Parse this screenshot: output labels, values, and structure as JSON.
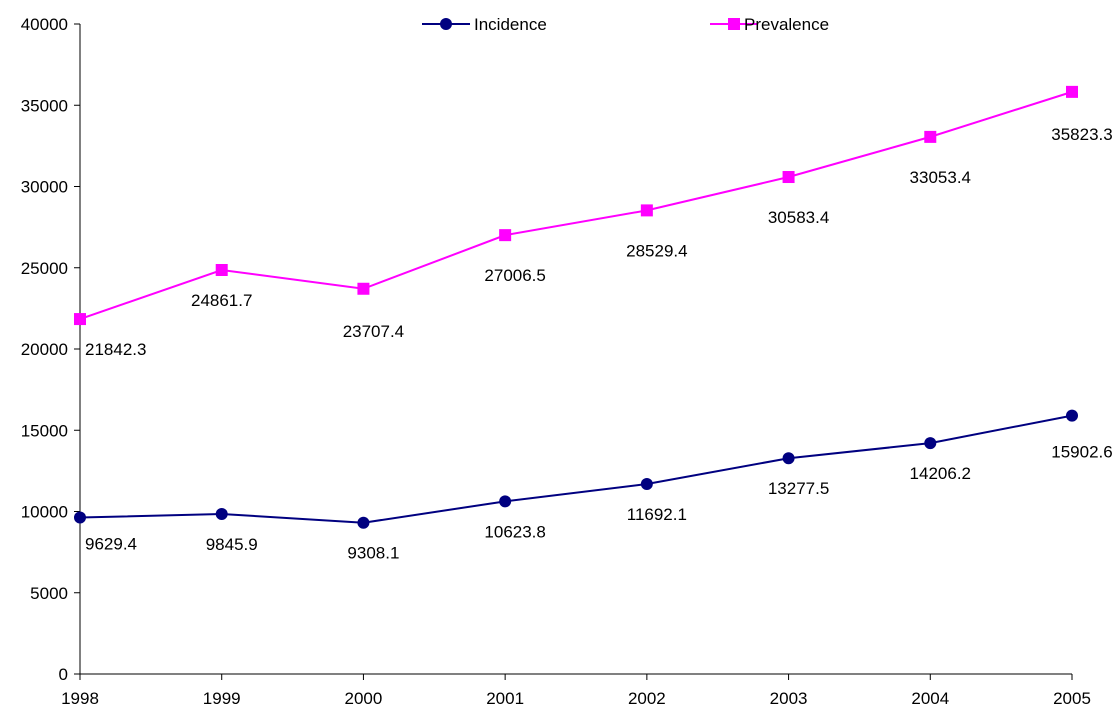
{
  "chart_data": {
    "type": "line",
    "x": [
      "1998",
      "1999",
      "2000",
      "2001",
      "2002",
      "2003",
      "2004",
      "2005"
    ],
    "ylim": [
      0,
      40000
    ],
    "y_ticks": [
      0,
      5000,
      10000,
      15000,
      20000,
      25000,
      30000,
      35000,
      40000
    ],
    "grid": false,
    "legend_position": "top",
    "series": [
      {
        "name": "Incidence",
        "marker": "circle",
        "color": "#000080",
        "values": [
          9629.4,
          9845.9,
          9308.1,
          10623.8,
          11692.1,
          13277.5,
          14206.2,
          15902.6
        ],
        "labels": [
          "9629.4",
          "9845.9",
          "9308.1",
          "10623.8",
          "11692.1",
          "13277.5",
          "14206.2",
          "15902.6"
        ]
      },
      {
        "name": "Prevalence",
        "marker": "square",
        "color": "#FF00FF",
        "values": [
          21842.3,
          24861.7,
          23707.4,
          27006.5,
          28529.4,
          30583.4,
          33053.4,
          35823.3
        ],
        "labels": [
          "21842.3",
          "24861.7",
          "23707.4",
          "27006.5",
          "28529.4",
          "30583.4",
          "33053.4",
          "35823.3"
        ]
      }
    ]
  }
}
